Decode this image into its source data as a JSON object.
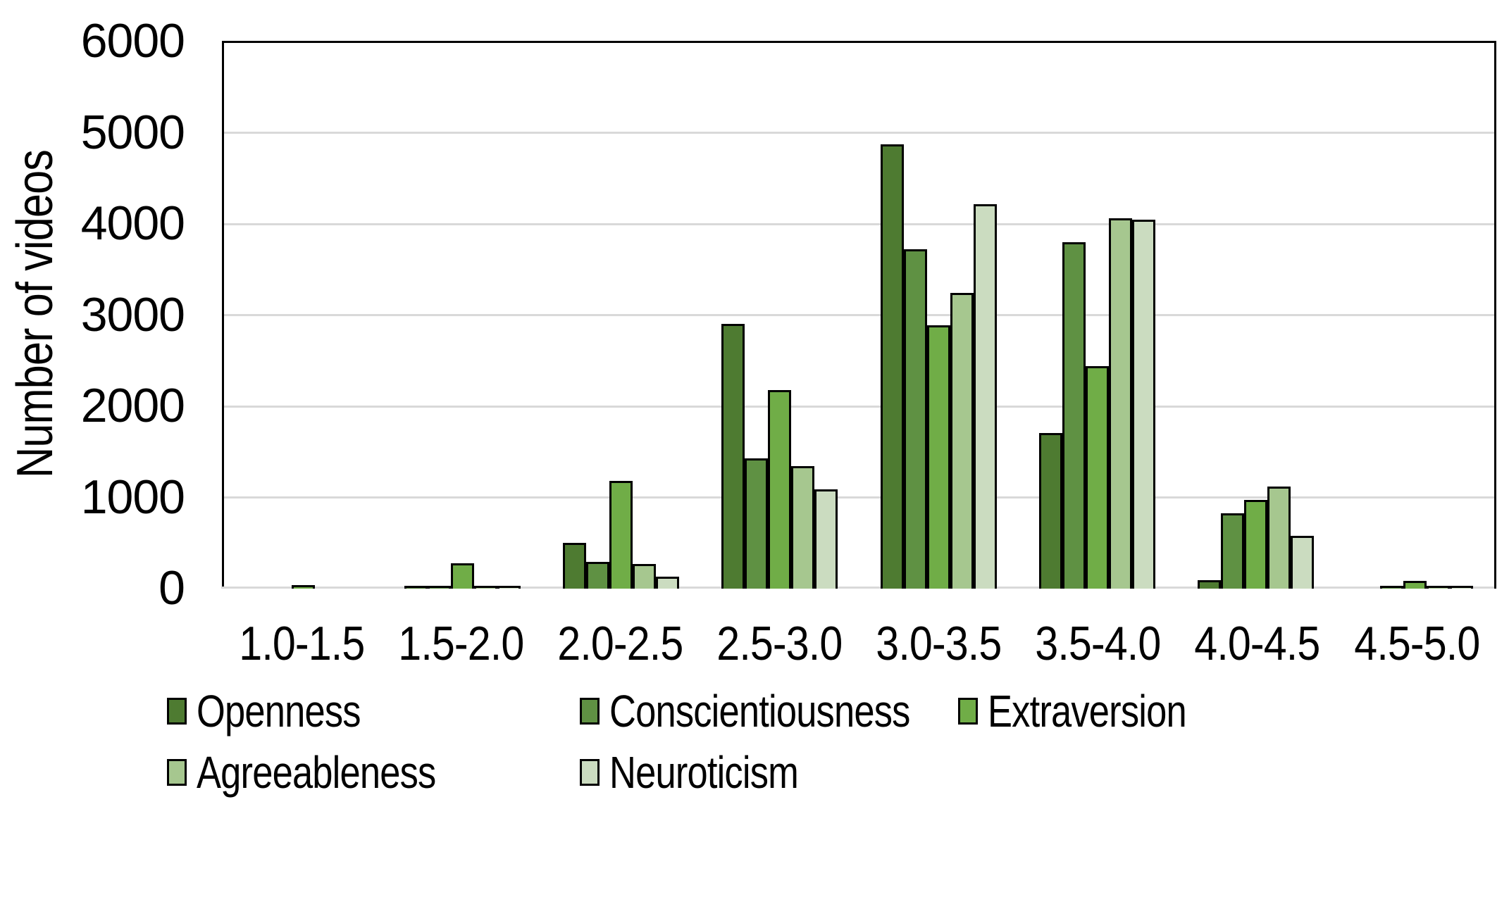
{
  "chart_data": {
    "type": "bar",
    "title": "",
    "xlabel": "",
    "ylabel": "Number of videos",
    "ylim": [
      0,
      6000
    ],
    "ytick_step": 1000,
    "yticks": [
      0,
      1000,
      2000,
      3000,
      4000,
      5000,
      6000
    ],
    "grid": true,
    "legend_position": "bottom",
    "categories": [
      "1.0-1.5",
      "1.5-2.0",
      "2.0-2.5",
      "2.5-3.0",
      "3.0-3.5",
      "3.5-4.0",
      "4.0-4.5",
      "4.5-5.0"
    ],
    "series": [
      {
        "name": "Openness",
        "color": "#4e7b31",
        "values": [
          0,
          30,
          500,
          2900,
          4870,
          1710,
          90,
          0
        ]
      },
      {
        "name": "Conscientiousness",
        "color": "#5f9143",
        "values": [
          0,
          30,
          290,
          1430,
          3720,
          3800,
          830,
          30
        ]
      },
      {
        "name": "Extraversion",
        "color": "#70ad47",
        "values": [
          40,
          280,
          1180,
          2180,
          2890,
          2440,
          970,
          85
        ]
      },
      {
        "name": "Agreeableness",
        "color": "#a6c78f",
        "values": [
          0,
          30,
          270,
          1340,
          3240,
          4060,
          1120,
          30
        ]
      },
      {
        "name": "Neuroticism",
        "color": "#cbdcc0",
        "values": [
          0,
          30,
          130,
          1090,
          4220,
          4050,
          580,
          30
        ]
      }
    ],
    "legend_rows": [
      [
        0,
        1,
        2
      ],
      [
        3,
        4
      ]
    ]
  },
  "colors": {
    "background": "#ffffff",
    "axis_line": "#000000",
    "gridline": "#d9d9d9",
    "bar_outline": "#000000"
  }
}
